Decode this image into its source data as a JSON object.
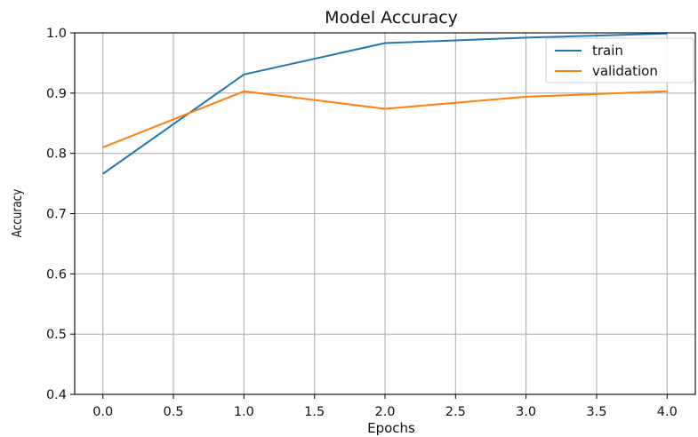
{
  "chart_data": {
    "type": "line",
    "title": "Model Accuracy",
    "xlabel": "Epochs",
    "ylabel": "Accuracy",
    "x": [
      0,
      1,
      2,
      3,
      4
    ],
    "xlim": [
      -0.2,
      4.2
    ],
    "ylim": [
      0.4,
      1.0
    ],
    "xticks": [
      "0.0",
      "0.5",
      "1.0",
      "1.5",
      "2.0",
      "2.5",
      "3.0",
      "3.5",
      "4.0"
    ],
    "yticks": [
      "0.4",
      "0.5",
      "0.6",
      "0.7",
      "0.8",
      "0.9",
      "1.0"
    ],
    "grid": true,
    "legend_position": "top-right",
    "series": [
      {
        "name": "train",
        "color": "#1f77b4",
        "values": [
          0.766,
          0.931,
          0.983,
          0.992,
          0.999
        ]
      },
      {
        "name": "validation",
        "color": "#ff7f0e",
        "values": [
          0.81,
          0.903,
          0.874,
          0.894,
          0.903
        ]
      }
    ]
  }
}
